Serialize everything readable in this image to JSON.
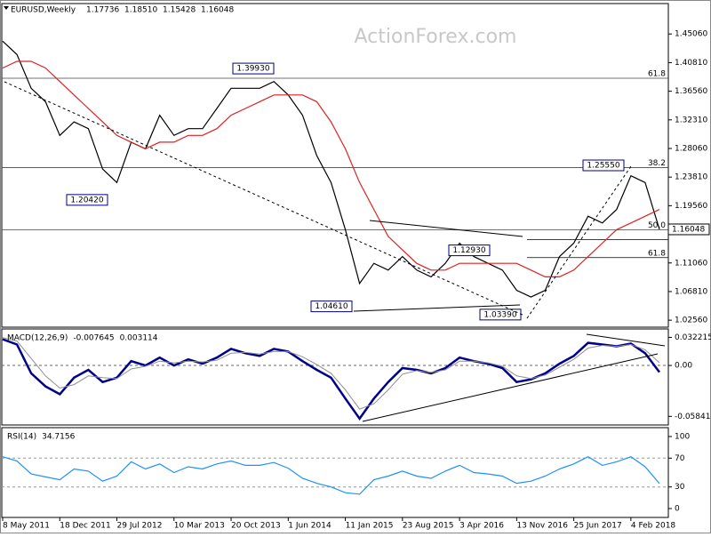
{
  "header": {
    "symbol": "EURUSD,Weekly",
    "ohlc": [
      1.17736,
      {
        "value": 1.1851,
        "label": "1.18510"
      },
      1.15428,
      1.16048
    ]
  },
  "watermark": "ActionForex.com",
  "chart_data": [
    {
      "type": "line",
      "ylim": [
        1.0205,
        1.4905
      ],
      "yticks": [
        {
          "value": 1.4506,
          "label": "1.45060"
        },
        {
          "value": 1.4081,
          "label": "1.40810"
        },
        {
          "value": 1.3656,
          "label": "1.36560"
        },
        {
          "value": 1.3231,
          "label": "1.32310"
        },
        {
          "value": 1.2806,
          "label": "1.28060"
        },
        {
          "value": 1.2381,
          "label": "1.23810"
        },
        {
          "value": 1.1956,
          "label": "1.19560"
        },
        {
          "value": 1.1106,
          "label": "1.11060"
        },
        {
          "value": 1.0681,
          "label": "1.06810"
        },
        {
          "value": 1.0256,
          "label": "1.02560"
        }
      ],
      "series": [
        {
          "color": "#000000",
          "values": [
            1.44,
            1.42,
            1.37,
            1.35,
            1.3,
            1.32,
            1.31,
            1.25,
            1.23,
            1.29,
            1.28,
            1.33,
            1.3,
            1.31,
            1.31,
            1.34,
            1.37,
            1.37,
            1.37,
            1.38,
            1.36,
            1.33,
            1.27,
            1.23,
            1.16,
            1.08,
            1.11,
            1.1,
            1.12,
            1.1,
            1.09,
            1.11,
            1.14,
            1.12,
            1.11,
            1.1,
            1.07,
            1.06,
            1.07,
            1.12,
            1.14,
            1.18,
            1.17,
            1.19,
            1.24,
            1.23,
            1.16048
          ]
        },
        {
          "color": "#e02020",
          "values": [
            1.4,
            1.41,
            1.41,
            1.4,
            1.38,
            1.36,
            1.34,
            1.32,
            1.3,
            1.29,
            1.28,
            1.29,
            1.29,
            1.3,
            1.3,
            1.31,
            1.33,
            1.34,
            1.35,
            1.36,
            1.36,
            1.36,
            1.35,
            1.32,
            1.28,
            1.23,
            1.19,
            1.15,
            1.13,
            1.11,
            1.1,
            1.1,
            1.11,
            1.11,
            1.11,
            1.11,
            1.11,
            1.1,
            1.09,
            1.09,
            1.1,
            1.12,
            1.14,
            1.16,
            1.17,
            1.18,
            1.19
          ]
        }
      ],
      "levels": [
        {
          "value": 1.3849,
          "label": "61.8",
          "span": "full"
        },
        {
          "value": 1.2523,
          "label": "38.2",
          "span": "full"
        },
        {
          "value": 1.1596,
          "label": "50.0",
          "span": "full"
        },
        {
          "value": 1.1454,
          "span": "right"
        },
        {
          "value": 1.1185,
          "label": "61.8",
          "span": "right"
        }
      ],
      "annotations": [
        {
          "value": 1.3993,
          "label": "1.39930"
        },
        {
          "value": 1.2042,
          "label": "1.20420"
        },
        {
          "value": 1.2555,
          "label": "1.25550"
        },
        {
          "value": 1.1293,
          "label": "1.12930"
        },
        {
          "value": 1.0461,
          "label": "1.04610"
        },
        {
          "value": 1.0339,
          "label": "1.03390"
        }
      ]
    },
    {
      "type": "line",
      "title": "MACD(12,26,9)",
      "ylim": [
        -0.0642,
        0.0378
      ],
      "yticks": [
        0.032215,
        {
          "value": 0,
          "label": "0.00"
        },
        -0.058413
      ],
      "zero_line": true,
      "series": [
        {
          "color": "#00008b",
          "width": 2.5,
          "values": [
            0.03,
            0.024,
            -0.009,
            -0.024,
            -0.033,
            -0.014,
            -0.005,
            -0.019,
            -0.014,
            0.005,
            0,
            0.009,
            0,
            0.007,
            0.002,
            0.009,
            0.019,
            0.014,
            0.011,
            0.019,
            0.016,
            0.005,
            -0.005,
            -0.014,
            -0.038,
            -0.061,
            -0.038,
            -0.019,
            -0.003,
            -0.005,
            -0.009,
            -0.003,
            0.009,
            0.005,
            0.002,
            -0.003,
            -0.019,
            -0.016,
            -0.009,
            0.002,
            0.011,
            0.026,
            0.024,
            0.022,
            0.025,
            0.014,
            -0.007645
          ]
        },
        {
          "color": "#909090",
          "width": 1,
          "values": [
            0.032,
            0.028,
            0.008,
            -0.012,
            -0.026,
            -0.022,
            -0.012,
            -0.014,
            -0.015,
            -0.004,
            -0.001,
            0.005,
            0.003,
            0.005,
            0.004,
            0.006,
            0.014,
            0.015,
            0.013,
            0.016,
            0.016,
            0.01,
            0.001,
            -0.009,
            -0.028,
            -0.05,
            -0.044,
            -0.028,
            -0.01,
            -0.006,
            -0.008,
            -0.005,
            0.005,
            0.005,
            0.003,
            -0.001,
            -0.012,
            -0.015,
            -0.011,
            -0.002,
            0.007,
            0.02,
            0.023,
            0.022,
            0.024,
            0.018,
            0.003114
          ]
        }
      ]
    },
    {
      "type": "line",
      "title": "RSI(14)",
      "ylim": [
        0,
        100
      ],
      "yticks": [
        100,
        70,
        30,
        0
      ],
      "guides": [
        70,
        30
      ],
      "categories": [
        "8 May 2011",
        null,
        null,
        null,
        "18 Dec 2011",
        null,
        null,
        null,
        "29 Jul 2012",
        null,
        null,
        null,
        "10 Mar 2013",
        null,
        null,
        null,
        "20 Oct 2013",
        null,
        null,
        null,
        "1 Jun 2014",
        null,
        null,
        null,
        "11 Jan 2015",
        null,
        null,
        null,
        "23 Aug 2015",
        null,
        null,
        null,
        "3 Apr 2016",
        null,
        null,
        null,
        "13 Nov 2016",
        null,
        null,
        null,
        "25 Jun 2017",
        null,
        null,
        null,
        "4 Feb 2018",
        null,
        null
      ],
      "series": [
        {
          "color": "#1e90ff",
          "values": [
            72,
            66,
            48,
            44,
            40,
            55,
            52,
            38,
            45,
            65,
            55,
            62,
            50,
            58,
            55,
            62,
            66,
            60,
            60,
            64,
            56,
            42,
            35,
            30,
            22,
            20,
            40,
            45,
            52,
            45,
            42,
            52,
            60,
            50,
            48,
            45,
            35,
            38,
            45,
            55,
            62,
            72,
            60,
            65,
            72,
            58,
            34.7156
          ]
        }
      ]
    }
  ]
}
